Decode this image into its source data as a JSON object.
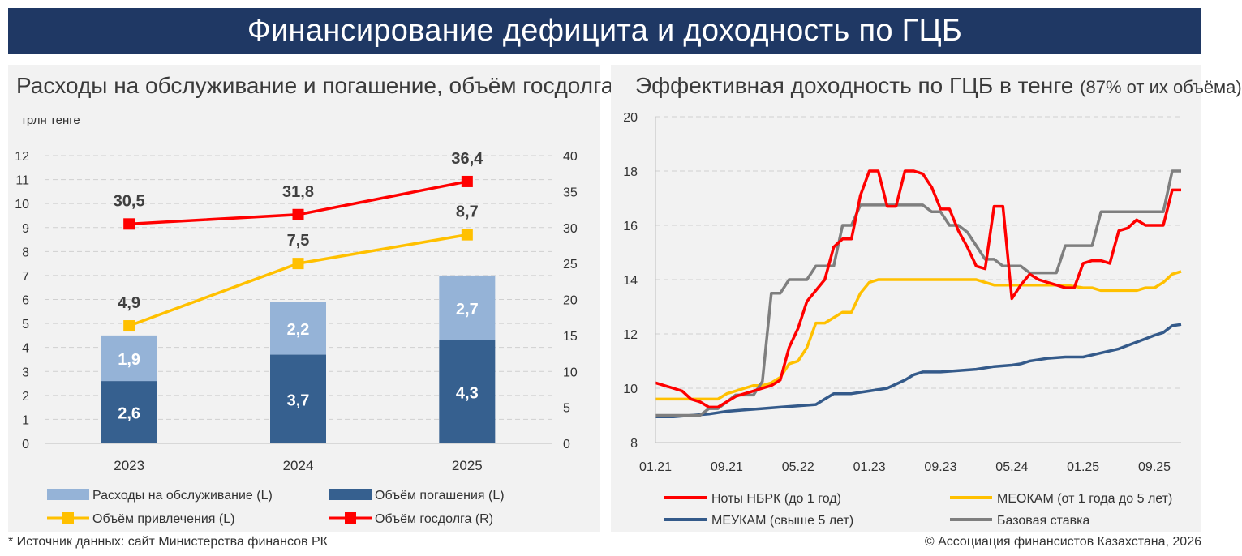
{
  "header": {
    "title": "Финансирование дефицита и доходность по ГЦБ"
  },
  "left_panel": {
    "title": "Расходы на обслуживание и погашение, объём госдолга",
    "unit": "трлн тенге",
    "legend": {
      "service": "Расходы на обслуживание (L)",
      "repay": "Объём погашения (L)",
      "borrow": "Объём привлечения (L)",
      "debt": "Объём госдолга (R)"
    }
  },
  "right_panel": {
    "title_main": "Эффективная доходность по ГЦБ в тенге ",
    "title_small": "(87% от их объёма)",
    "legend": {
      "notes": "Ноты НБРК (до 1 год)",
      "meokam": "МЕОКАМ (от 1 года до 5 лет)",
      "meukam": "МЕУКАМ (свыше 5 лет)",
      "base": "Базовая ставка"
    }
  },
  "footer": {
    "source": "* Источник данных: сайт Министерства финансов РК",
    "copyright": "© Ассоциация финансистов Казахстана, 2026"
  },
  "colors": {
    "dark_blue": "#36608f",
    "light_blue": "#95b3d7",
    "yellow": "#ffc000",
    "red": "#ff0000",
    "grey": "#7f7f7f",
    "navy_line": "#345a8a"
  },
  "chart_data": [
    {
      "type": "bar",
      "stacked": true,
      "categories": [
        "2023",
        "2024",
        "2025"
      ],
      "series": [
        {
          "name": "Объём погашения (L)",
          "values": [
            2.6,
            3.7,
            4.3
          ],
          "labels": [
            "2,6",
            "3,7",
            "4,3"
          ]
        },
        {
          "name": "Расходы на обслуживание (L)",
          "values": [
            1.9,
            2.2,
            2.7
          ],
          "labels": [
            "1,9",
            "2,2",
            "2,7"
          ]
        }
      ],
      "lines": [
        {
          "name": "Объём привлечения (L)",
          "axis": "left",
          "values": [
            4.9,
            7.5,
            8.7
          ],
          "labels": [
            "4,9",
            "7,5",
            "8,7"
          ]
        },
        {
          "name": "Объём госдолга (R)",
          "axis": "right",
          "values": [
            30.5,
            31.8,
            36.4
          ],
          "labels": [
            "30,5",
            "31,8",
            "36,4"
          ]
        }
      ],
      "ylim": [
        0,
        12
      ],
      "yticks": [
        "0",
        "1",
        "2",
        "3",
        "4",
        "5",
        "6",
        "7",
        "8",
        "9",
        "10",
        "11",
        "12"
      ],
      "y2lim": [
        0,
        40
      ],
      "y2ticks": [
        "0",
        "5",
        "10",
        "15",
        "20",
        "25",
        "30",
        "35",
        "40"
      ],
      "ylabel": "трлн тенге"
    },
    {
      "type": "line",
      "title": "Эффективная доходность по ГЦБ в тенге (87% от их объёма)",
      "ylim": [
        8,
        20
      ],
      "yticks": [
        "8",
        "10",
        "12",
        "14",
        "16",
        "18",
        "20"
      ],
      "x_range": [
        0,
        60
      ],
      "x_ticks": [
        {
          "x": 0,
          "label": "01.21"
        },
        {
          "x": 8,
          "label": "09.21"
        },
        {
          "x": 16,
          "label": "05.22"
        },
        {
          "x": 24,
          "label": "01.23"
        },
        {
          "x": 32,
          "label": "09.23"
        },
        {
          "x": 40,
          "label": "05.24"
        },
        {
          "x": 48,
          "label": "01.25"
        },
        {
          "x": 56,
          "label": "09.25"
        }
      ],
      "series": [
        {
          "name": "Ноты НБРК (до 1 год)",
          "points": [
            [
              0,
              10.2
            ],
            [
              1,
              10.1
            ],
            [
              2,
              10.0
            ],
            [
              3,
              9.9
            ],
            [
              4,
              9.6
            ],
            [
              5,
              9.5
            ],
            [
              6,
              9.3
            ],
            [
              7,
              9.3
            ],
            [
              8,
              9.5
            ],
            [
              9,
              9.7
            ],
            [
              10,
              9.8
            ],
            [
              11,
              9.9
            ],
            [
              12,
              10.0
            ],
            [
              13,
              10.1
            ],
            [
              14,
              10.3
            ],
            [
              15,
              11.5
            ],
            [
              16,
              12.2
            ],
            [
              17,
              13.2
            ],
            [
              18,
              13.6
            ],
            [
              19,
              14.0
            ],
            [
              20,
              15.2
            ],
            [
              21,
              15.5
            ],
            [
              22,
              15.5
            ],
            [
              23,
              17.1
            ],
            [
              24,
              18.0
            ],
            [
              25,
              18.0
            ],
            [
              26,
              16.7
            ],
            [
              27,
              16.7
            ],
            [
              28,
              18.0
            ],
            [
              29,
              18.0
            ],
            [
              30,
              17.9
            ],
            [
              31,
              17.4
            ],
            [
              32,
              16.6
            ],
            [
              33,
              16.6
            ],
            [
              34,
              15.8
            ],
            [
              35,
              15.2
            ],
            [
              36,
              14.5
            ],
            [
              37,
              14.4
            ],
            [
              38,
              16.7
            ],
            [
              39,
              16.7
            ],
            [
              40,
              13.3
            ],
            [
              41,
              13.8
            ],
            [
              42,
              14.2
            ],
            [
              43,
              14.0
            ],
            [
              44,
              13.9
            ],
            [
              45,
              13.8
            ],
            [
              46,
              13.7
            ],
            [
              47,
              13.7
            ],
            [
              48,
              14.6
            ],
            [
              49,
              14.7
            ],
            [
              50,
              14.7
            ],
            [
              51,
              14.6
            ],
            [
              52,
              15.8
            ],
            [
              53,
              15.9
            ],
            [
              54,
              16.2
            ],
            [
              55,
              16.0
            ],
            [
              56,
              16.0
            ],
            [
              57,
              16.0
            ],
            [
              58,
              17.3
            ],
            [
              59,
              17.3
            ]
          ]
        },
        {
          "name": "МЕОКАМ (от 1 года до 5 лет)",
          "points": [
            [
              0,
              9.6
            ],
            [
              2,
              9.6
            ],
            [
              4,
              9.6
            ],
            [
              6,
              9.6
            ],
            [
              7,
              9.6
            ],
            [
              8,
              9.8
            ],
            [
              9,
              9.9
            ],
            [
              10,
              10.0
            ],
            [
              11,
              10.1
            ],
            [
              12,
              10.1
            ],
            [
              13,
              10.2
            ],
            [
              14,
              10.4
            ],
            [
              15,
              10.9
            ],
            [
              16,
              11.0
            ],
            [
              17,
              11.5
            ],
            [
              18,
              12.4
            ],
            [
              19,
              12.4
            ],
            [
              20,
              12.6
            ],
            [
              21,
              12.8
            ],
            [
              22,
              12.8
            ],
            [
              23,
              13.5
            ],
            [
              24,
              13.9
            ],
            [
              25,
              14.0
            ],
            [
              26,
              14.0
            ],
            [
              28,
              14.0
            ],
            [
              30,
              14.0
            ],
            [
              32,
              14.0
            ],
            [
              34,
              14.0
            ],
            [
              36,
              14.0
            ],
            [
              37,
              13.9
            ],
            [
              38,
              13.8
            ],
            [
              40,
              13.8
            ],
            [
              42,
              13.8
            ],
            [
              44,
              13.8
            ],
            [
              46,
              13.8
            ],
            [
              48,
              13.7
            ],
            [
              49,
              13.7
            ],
            [
              50,
              13.6
            ],
            [
              52,
              13.6
            ],
            [
              54,
              13.6
            ],
            [
              55,
              13.7
            ],
            [
              56,
              13.7
            ],
            [
              57,
              13.9
            ],
            [
              58,
              14.2
            ],
            [
              59,
              14.3
            ]
          ]
        },
        {
          "name": "МЕУКАМ (свыше 5 лет)",
          "points": [
            [
              0,
              8.95
            ],
            [
              2,
              8.95
            ],
            [
              4,
              9.0
            ],
            [
              6,
              9.05
            ],
            [
              7,
              9.1
            ],
            [
              8,
              9.15
            ],
            [
              10,
              9.2
            ],
            [
              12,
              9.25
            ],
            [
              14,
              9.3
            ],
            [
              16,
              9.35
            ],
            [
              18,
              9.4
            ],
            [
              19,
              9.6
            ],
            [
              20,
              9.8
            ],
            [
              22,
              9.8
            ],
            [
              23,
              9.85
            ],
            [
              24,
              9.9
            ],
            [
              26,
              10.0
            ],
            [
              28,
              10.3
            ],
            [
              29,
              10.5
            ],
            [
              30,
              10.6
            ],
            [
              32,
              10.6
            ],
            [
              34,
              10.65
            ],
            [
              36,
              10.7
            ],
            [
              38,
              10.8
            ],
            [
              40,
              10.85
            ],
            [
              41,
              10.9
            ],
            [
              42,
              11.0
            ],
            [
              43,
              11.05
            ],
            [
              44,
              11.1
            ],
            [
              46,
              11.15
            ],
            [
              48,
              11.15
            ],
            [
              50,
              11.3
            ],
            [
              52,
              11.45
            ],
            [
              54,
              11.7
            ],
            [
              56,
              11.95
            ],
            [
              57,
              12.05
            ],
            [
              58,
              12.3
            ],
            [
              59,
              12.35
            ]
          ]
        },
        {
          "name": "Базовая ставка",
          "points": [
            [
              0,
              9.0
            ],
            [
              1,
              9.0
            ],
            [
              2,
              9.0
            ],
            [
              3,
              9.0
            ],
            [
              4,
              9.0
            ],
            [
              5,
              9.0
            ],
            [
              6,
              9.25
            ],
            [
              7,
              9.25
            ],
            [
              8,
              9.5
            ],
            [
              9,
              9.75
            ],
            [
              10,
              9.75
            ],
            [
              11,
              9.75
            ],
            [
              12,
              10.25
            ],
            [
              13,
              13.5
            ],
            [
              14,
              13.5
            ],
            [
              15,
              14.0
            ],
            [
              16,
              14.0
            ],
            [
              17,
              14.0
            ],
            [
              18,
              14.5
            ],
            [
              19,
              14.5
            ],
            [
              20,
              14.5
            ],
            [
              21,
              16.0
            ],
            [
              22,
              16.0
            ],
            [
              23,
              16.75
            ],
            [
              24,
              16.75
            ],
            [
              25,
              16.75
            ],
            [
              26,
              16.75
            ],
            [
              27,
              16.75
            ],
            [
              28,
              16.75
            ],
            [
              29,
              16.75
            ],
            [
              30,
              16.75
            ],
            [
              31,
              16.5
            ],
            [
              32,
              16.5
            ],
            [
              33,
              16.0
            ],
            [
              34,
              16.0
            ],
            [
              35,
              15.75
            ],
            [
              36,
              15.25
            ],
            [
              37,
              14.75
            ],
            [
              38,
              14.75
            ],
            [
              39,
              14.5
            ],
            [
              40,
              14.5
            ],
            [
              41,
              14.5
            ],
            [
              42,
              14.25
            ],
            [
              43,
              14.25
            ],
            [
              44,
              14.25
            ],
            [
              45,
              14.25
            ],
            [
              46,
              15.25
            ],
            [
              47,
              15.25
            ],
            [
              48,
              15.25
            ],
            [
              49,
              15.25
            ],
            [
              50,
              16.5
            ],
            [
              51,
              16.5
            ],
            [
              52,
              16.5
            ],
            [
              53,
              16.5
            ],
            [
              54,
              16.5
            ],
            [
              55,
              16.5
            ],
            [
              56,
              16.5
            ],
            [
              57,
              16.5
            ],
            [
              58,
              18.0
            ],
            [
              59,
              18.0
            ]
          ]
        }
      ]
    }
  ]
}
